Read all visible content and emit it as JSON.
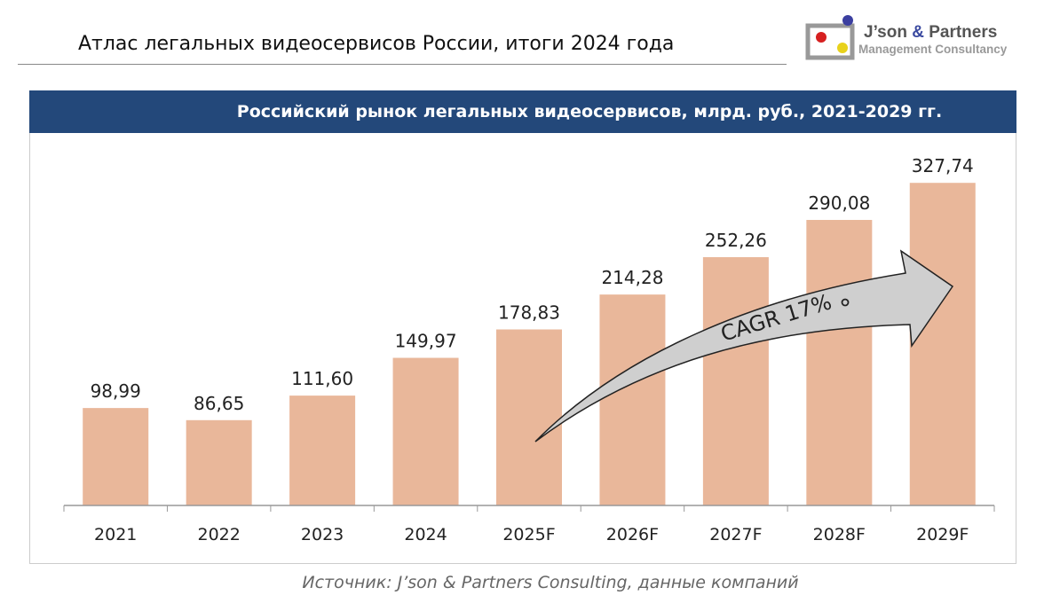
{
  "page_title": "Атлас легальных видеосервисов России, итоги 2024 года",
  "logo": {
    "line1": "J’son & Partners",
    "line2": "Management Consultancy"
  },
  "source": "Источник: J’son & Partners Consulting, данные компаний",
  "chart_data": {
    "type": "bar",
    "title": "Российский рынок легальных видеосервисов, млрд. руб., 2021-2029 гг.",
    "categories": [
      "2021",
      "2022",
      "2023",
      "2024",
      "2025F",
      "2026F",
      "2027F",
      "2028F",
      "2029F"
    ],
    "values": [
      98.99,
      86.65,
      111.6,
      149.97,
      178.83,
      214.28,
      252.26,
      290.08,
      327.74
    ],
    "labels": [
      "98,99",
      "86,65",
      "111,60",
      "149,97",
      "178,83",
      "214,28",
      "252,26",
      "290,08",
      "327,74"
    ],
    "annotation": "CAGR 17%",
    "bar_color": "#e9b79a",
    "xlabel": "",
    "ylabel": "",
    "ylim": [
      0,
      360
    ],
    "grid": false
  }
}
